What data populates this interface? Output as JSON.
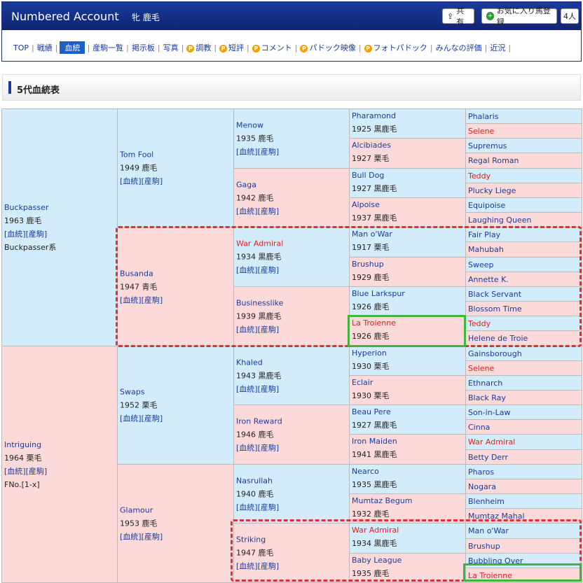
{
  "header": {
    "app_title": "Numbered Account",
    "horse_name": "牝 鹿毛",
    "share_label": "共有",
    "fav_label": "お気に入り馬登録",
    "fav_count": "4人"
  },
  "nav": {
    "items": [
      {
        "label": "TOP",
        "p": false,
        "active": false
      },
      {
        "label": "戦績",
        "p": false,
        "active": false
      },
      {
        "label": "血統",
        "p": false,
        "active": true
      },
      {
        "label": "産駒一覧",
        "p": false,
        "active": false
      },
      {
        "label": "掲示板",
        "p": false,
        "active": false
      },
      {
        "label": "写真",
        "p": false,
        "active": false
      },
      {
        "label": "調教",
        "p": true,
        "active": false
      },
      {
        "label": "短評",
        "p": true,
        "active": false
      },
      {
        "label": "コメント",
        "p": true,
        "active": false
      },
      {
        "label": "パドック映像",
        "p": true,
        "active": false
      },
      {
        "label": "フォトパドック",
        "p": true,
        "active": false
      },
      {
        "label": "みんなの評価",
        "p": false,
        "active": false
      },
      {
        "label": "近況",
        "p": false,
        "active": false
      }
    ]
  },
  "section": {
    "title": "5代血統表"
  },
  "pedigree": {
    "gen1": [
      {
        "name": "Buckpasser",
        "info": "1963 鹿毛",
        "links": "[血統][産駒]",
        "extra": "Buckpasser系",
        "sex": "sire"
      },
      {
        "name": "Intriguing",
        "info": "1964 栗毛",
        "links": "[血統][産駒]",
        "extra": "FNo.[1-x]",
        "sex": "dam"
      }
    ],
    "gen2": [
      {
        "name": "Tom Fool",
        "info": "1949 鹿毛",
        "links": "[血統][産駒]",
        "sex": "sire"
      },
      {
        "name": "Busanda",
        "info": "1947 青毛",
        "links": "[血統][産駒]",
        "sex": "dam"
      },
      {
        "name": "Swaps",
        "info": "1952 栗毛",
        "links": "[血統][産駒]",
        "sex": "sire"
      },
      {
        "name": "Glamour",
        "info": "1953 鹿毛",
        "links": "[血統][産駒]",
        "sex": "dam"
      }
    ],
    "gen3": [
      {
        "name": "Menow",
        "info": "1935 鹿毛",
        "links": "[血統][産駒]",
        "sex": "sire",
        "red": false
      },
      {
        "name": "Gaga",
        "info": "1942 鹿毛",
        "links": "[血統][産駒]",
        "sex": "dam",
        "red": false
      },
      {
        "name": "War Admiral",
        "info": "1934 黒鹿毛",
        "links": "[血統][産駒]",
        "sex": "sire",
        "red": true
      },
      {
        "name": "Businesslike",
        "info": "1939 黒鹿毛",
        "links": "[血統][産駒]",
        "sex": "dam",
        "red": false
      },
      {
        "name": "Khaled",
        "info": "1943 黒鹿毛",
        "links": "[血統][産駒]",
        "sex": "sire",
        "red": false
      },
      {
        "name": "Iron Reward",
        "info": "1946 鹿毛",
        "links": "[血統][産駒]",
        "sex": "dam",
        "red": false
      },
      {
        "name": "Nasrullah",
        "info": "1940 鹿毛",
        "links": "[血統][産駒]",
        "sex": "sire",
        "red": false
      },
      {
        "name": "Striking",
        "info": "1947 鹿毛",
        "links": "[血統][産駒]",
        "sex": "dam",
        "red": false
      }
    ],
    "gen4": [
      {
        "name": "Pharamond",
        "info": "1925 黒鹿毛",
        "sex": "sire",
        "red": false
      },
      {
        "name": "Alcibiades",
        "info": "1927 栗毛",
        "sex": "dam",
        "red": false
      },
      {
        "name": "Bull Dog",
        "info": "1927 黒鹿毛",
        "sex": "sire",
        "red": false
      },
      {
        "name": "Alpoise",
        "info": "1937 黒鹿毛",
        "sex": "dam",
        "red": false
      },
      {
        "name": "Man o'War",
        "info": "1917 栗毛",
        "sex": "sire",
        "red": false
      },
      {
        "name": "Brushup",
        "info": "1929 鹿毛",
        "sex": "dam",
        "red": false
      },
      {
        "name": "Blue Larkspur",
        "info": "1926 鹿毛",
        "sex": "sire",
        "red": false
      },
      {
        "name": "La Troienne",
        "info": "1926 鹿毛",
        "sex": "dam",
        "red": true
      },
      {
        "name": "Hyperion",
        "info": "1930 栗毛",
        "sex": "sire",
        "red": false
      },
      {
        "name": "Eclair",
        "info": "1930 栗毛",
        "sex": "dam",
        "red": false
      },
      {
        "name": "Beau Pere",
        "info": "1927 黒鹿毛",
        "sex": "sire",
        "red": false
      },
      {
        "name": "Iron Maiden",
        "info": "1941 黒鹿毛",
        "sex": "dam",
        "red": false
      },
      {
        "name": "Nearco",
        "info": "1935 黒鹿毛",
        "sex": "sire",
        "red": false
      },
      {
        "name": "Mumtaz Begum",
        "info": "1932 鹿毛",
        "sex": "dam",
        "red": false
      },
      {
        "name": "War Admiral",
        "info": "1934 黒鹿毛",
        "sex": "sire",
        "red": true
      },
      {
        "name": "Baby League",
        "info": "1935 鹿毛",
        "sex": "dam",
        "red": false
      }
    ],
    "gen5": [
      {
        "name": "Phalaris",
        "red": false
      },
      {
        "name": "Selene",
        "red": true
      },
      {
        "name": "Supremus",
        "red": false
      },
      {
        "name": "Regal Roman",
        "red": false
      },
      {
        "name": "Teddy",
        "red": true
      },
      {
        "name": "Plucky Liege",
        "red": false
      },
      {
        "name": "Equipoise",
        "red": false
      },
      {
        "name": "Laughing Queen",
        "red": false
      },
      {
        "name": "Fair Play",
        "red": false
      },
      {
        "name": "Mahubah",
        "red": false
      },
      {
        "name": "Sweep",
        "red": false
      },
      {
        "name": "Annette K.",
        "red": false
      },
      {
        "name": "Black Servant",
        "red": false
      },
      {
        "name": "Blossom Time",
        "red": false
      },
      {
        "name": "Teddy",
        "red": true
      },
      {
        "name": "Helene de Troie",
        "red": false
      },
      {
        "name": "Gainsborough",
        "red": false
      },
      {
        "name": "Selene",
        "red": true
      },
      {
        "name": "Ethnarch",
        "red": false
      },
      {
        "name": "Black Ray",
        "red": false
      },
      {
        "name": "Son-in-Law",
        "red": false
      },
      {
        "name": "Cinna",
        "red": false
      },
      {
        "name": "War Admiral",
        "red": true
      },
      {
        "name": "Betty Derr",
        "red": false
      },
      {
        "name": "Pharos",
        "red": false
      },
      {
        "name": "Nogara",
        "red": false
      },
      {
        "name": "Blenheim",
        "red": false
      },
      {
        "name": "Mumtaz Mahal",
        "red": false
      },
      {
        "name": "Man o'War",
        "red": false
      },
      {
        "name": "Brushup",
        "red": false
      },
      {
        "name": "Bubbling Over",
        "red": false
      },
      {
        "name": "La Troienne",
        "red": true
      }
    ]
  },
  "colors": {
    "header": "#1a3a9c",
    "sire_bg": "#d2ecfb",
    "dam_bg": "#fcdada",
    "highlight_red": "#e03036",
    "highlight_green": "#3fb53f"
  }
}
